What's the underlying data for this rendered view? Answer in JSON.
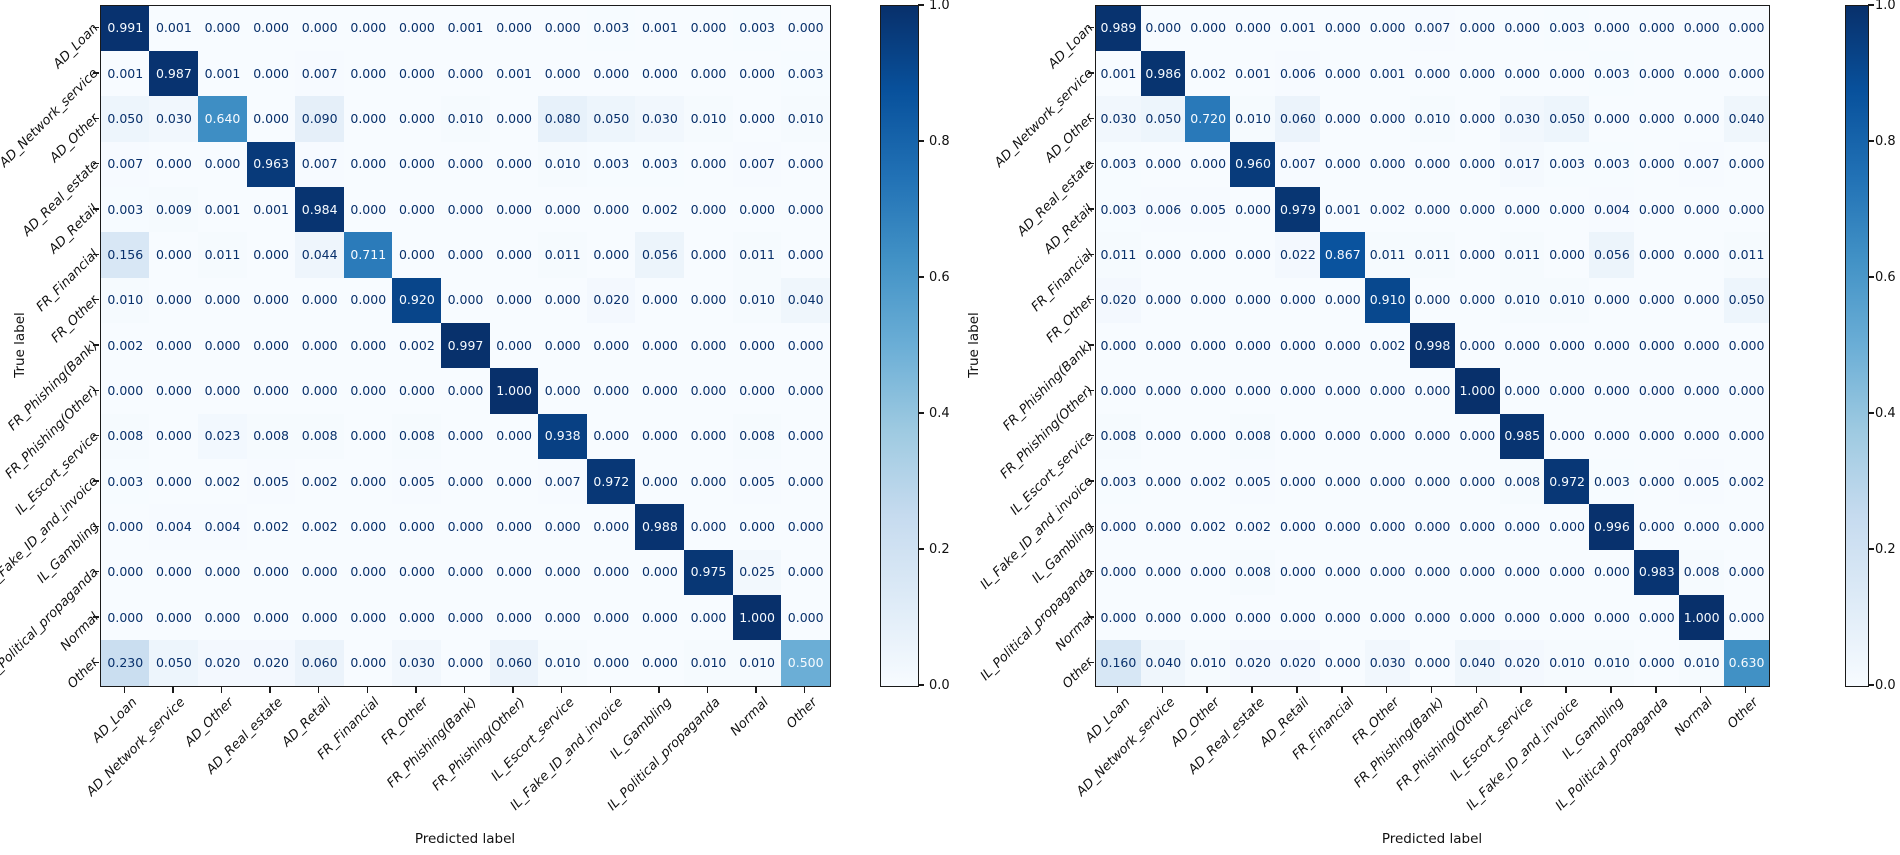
{
  "colormap": {
    "name": "Blues",
    "vmin": 0.0,
    "vmax": 1.0,
    "stops": [
      "#f7fbff",
      "#deebf7",
      "#c6dbef",
      "#9ecae1",
      "#6baed6",
      "#4292c6",
      "#2171b5",
      "#08519c",
      "#08306b"
    ],
    "text_color_low": "#08306b",
    "text_color_high": "#f7fbff",
    "text_threshold": 0.5
  },
  "chart_data": [
    {
      "type": "heatmap",
      "name": "confusion-matrix-1",
      "xlabel": "Predicted label",
      "ylabel": "True label",
      "categories": [
        "AD_Loan",
        "AD_Network_service",
        "AD_Other",
        "AD_Real_estate",
        "AD_Retail",
        "FR_Financial",
        "FR_Other",
        "FR_Phishing(Bank)",
        "FR_Phishing(Other)",
        "IL_Escort_service",
        "IL_Fake_ID_and_invoice",
        "IL_Gambling",
        "IL_Political_propaganda",
        "Normal",
        "Other"
      ],
      "matrix": [
        [
          0.991,
          0.001,
          0.0,
          0.0,
          0.0,
          0.0,
          0.0,
          0.001,
          0.0,
          0.0,
          0.003,
          0.001,
          0.0,
          0.003,
          0.0
        ],
        [
          0.001,
          0.987,
          0.001,
          0.0,
          0.007,
          0.0,
          0.0,
          0.0,
          0.001,
          0.0,
          0.0,
          0.0,
          0.0,
          0.0,
          0.003
        ],
        [
          0.05,
          0.03,
          0.64,
          0.0,
          0.09,
          0.0,
          0.0,
          0.01,
          0.0,
          0.08,
          0.05,
          0.03,
          0.01,
          0.0,
          0.01
        ],
        [
          0.007,
          0.0,
          0.0,
          0.963,
          0.007,
          0.0,
          0.0,
          0.0,
          0.0,
          0.01,
          0.003,
          0.003,
          0.0,
          0.007,
          0.0
        ],
        [
          0.003,
          0.009,
          0.001,
          0.001,
          0.984,
          0.0,
          0.0,
          0.0,
          0.0,
          0.0,
          0.0,
          0.002,
          0.0,
          0.0,
          0.0
        ],
        [
          0.156,
          0.0,
          0.011,
          0.0,
          0.044,
          0.711,
          0.0,
          0.0,
          0.0,
          0.011,
          0.0,
          0.056,
          0.0,
          0.011,
          0.0
        ],
        [
          0.01,
          0.0,
          0.0,
          0.0,
          0.0,
          0.0,
          0.92,
          0.0,
          0.0,
          0.0,
          0.02,
          0.0,
          0.0,
          0.01,
          0.04
        ],
        [
          0.002,
          0.0,
          0.0,
          0.0,
          0.0,
          0.0,
          0.002,
          0.997,
          0.0,
          0.0,
          0.0,
          0.0,
          0.0,
          0.0,
          0.0
        ],
        [
          0.0,
          0.0,
          0.0,
          0.0,
          0.0,
          0.0,
          0.0,
          0.0,
          1.0,
          0.0,
          0.0,
          0.0,
          0.0,
          0.0,
          0.0
        ],
        [
          0.008,
          0.0,
          0.023,
          0.008,
          0.008,
          0.0,
          0.008,
          0.0,
          0.0,
          0.938,
          0.0,
          0.0,
          0.0,
          0.008,
          0.0
        ],
        [
          0.003,
          0.0,
          0.002,
          0.005,
          0.002,
          0.0,
          0.005,
          0.0,
          0.0,
          0.007,
          0.972,
          0.0,
          0.0,
          0.005,
          0.0
        ],
        [
          0.0,
          0.004,
          0.004,
          0.002,
          0.002,
          0.0,
          0.0,
          0.0,
          0.0,
          0.0,
          0.0,
          0.988,
          0.0,
          0.0,
          0.0
        ],
        [
          0.0,
          0.0,
          0.0,
          0.0,
          0.0,
          0.0,
          0.0,
          0.0,
          0.0,
          0.0,
          0.0,
          0.0,
          0.975,
          0.025,
          0.0
        ],
        [
          0.0,
          0.0,
          0.0,
          0.0,
          0.0,
          0.0,
          0.0,
          0.0,
          0.0,
          0.0,
          0.0,
          0.0,
          0.0,
          1.0,
          0.0
        ],
        [
          0.23,
          0.05,
          0.02,
          0.02,
          0.06,
          0.0,
          0.03,
          0.0,
          0.06,
          0.01,
          0.0,
          0.0,
          0.01,
          0.01,
          0.5
        ]
      ],
      "value_format_decimals": 3,
      "colorbar": {
        "tick_labels": [
          "1.0",
          "0.8",
          "0.6",
          "0.4",
          "0.2",
          "0.0"
        ],
        "tick_values": [
          1.0,
          0.8,
          0.6,
          0.4,
          0.2,
          0.0
        ]
      }
    },
    {
      "type": "heatmap",
      "name": "confusion-matrix-2",
      "xlabel": "Predicted label",
      "ylabel": "True label",
      "categories": [
        "AD_Loan",
        "AD_Network_service",
        "AD_Other",
        "AD_Real_estate",
        "AD_Retail",
        "FR_Financial",
        "FR_Other",
        "FR_Phishing(Bank)",
        "FR_Phishing(Other)",
        "IL_Escort_service",
        "IL_Fake_ID_and_invoice",
        "IL_Gambling",
        "IL_Political_propaganda",
        "Normal",
        "Other"
      ],
      "matrix": [
        [
          0.989,
          0.0,
          0.0,
          0.0,
          0.001,
          0.0,
          0.0,
          0.007,
          0.0,
          0.0,
          0.003,
          0.0,
          0.0,
          0.0,
          0.0
        ],
        [
          0.001,
          0.986,
          0.002,
          0.001,
          0.006,
          0.0,
          0.001,
          0.0,
          0.0,
          0.0,
          0.0,
          0.003,
          0.0,
          0.0,
          0.0
        ],
        [
          0.03,
          0.05,
          0.72,
          0.01,
          0.06,
          0.0,
          0.0,
          0.01,
          0.0,
          0.03,
          0.05,
          0.0,
          0.0,
          0.0,
          0.04
        ],
        [
          0.003,
          0.0,
          0.0,
          0.96,
          0.007,
          0.0,
          0.0,
          0.0,
          0.0,
          0.017,
          0.003,
          0.003,
          0.0,
          0.007,
          0.0
        ],
        [
          0.003,
          0.006,
          0.005,
          0.0,
          0.979,
          0.001,
          0.002,
          0.0,
          0.0,
          0.0,
          0.0,
          0.004,
          0.0,
          0.0,
          0.0
        ],
        [
          0.011,
          0.0,
          0.0,
          0.0,
          0.022,
          0.867,
          0.011,
          0.011,
          0.0,
          0.011,
          0.0,
          0.056,
          0.0,
          0.0,
          0.011
        ],
        [
          0.02,
          0.0,
          0.0,
          0.0,
          0.0,
          0.0,
          0.91,
          0.0,
          0.0,
          0.01,
          0.01,
          0.0,
          0.0,
          0.0,
          0.05
        ],
        [
          0.0,
          0.0,
          0.0,
          0.0,
          0.0,
          0.0,
          0.002,
          0.998,
          0.0,
          0.0,
          0.0,
          0.0,
          0.0,
          0.0,
          0.0
        ],
        [
          0.0,
          0.0,
          0.0,
          0.0,
          0.0,
          0.0,
          0.0,
          0.0,
          1.0,
          0.0,
          0.0,
          0.0,
          0.0,
          0.0,
          0.0
        ],
        [
          0.008,
          0.0,
          0.0,
          0.008,
          0.0,
          0.0,
          0.0,
          0.0,
          0.0,
          0.985,
          0.0,
          0.0,
          0.0,
          0.0,
          0.0
        ],
        [
          0.003,
          0.0,
          0.002,
          0.005,
          0.0,
          0.0,
          0.0,
          0.0,
          0.0,
          0.008,
          0.972,
          0.003,
          0.0,
          0.005,
          0.002
        ],
        [
          0.0,
          0.0,
          0.002,
          0.002,
          0.0,
          0.0,
          0.0,
          0.0,
          0.0,
          0.0,
          0.0,
          0.996,
          0.0,
          0.0,
          0.0
        ],
        [
          0.0,
          0.0,
          0.0,
          0.008,
          0.0,
          0.0,
          0.0,
          0.0,
          0.0,
          0.0,
          0.0,
          0.0,
          0.983,
          0.008,
          0.0
        ],
        [
          0.0,
          0.0,
          0.0,
          0.0,
          0.0,
          0.0,
          0.0,
          0.0,
          0.0,
          0.0,
          0.0,
          0.0,
          0.0,
          1.0,
          0.0
        ],
        [
          0.16,
          0.04,
          0.01,
          0.02,
          0.02,
          0.0,
          0.03,
          0.0,
          0.04,
          0.02,
          0.01,
          0.01,
          0.0,
          0.01,
          0.63
        ]
      ],
      "value_format_decimals": 3,
      "colorbar": {
        "tick_labels": [
          "1.0",
          "0.8",
          "0.6",
          "0.4",
          "0.2",
          "0.0"
        ],
        "tick_values": [
          1.0,
          0.8,
          0.6,
          0.4,
          0.2,
          0.0
        ]
      }
    }
  ]
}
